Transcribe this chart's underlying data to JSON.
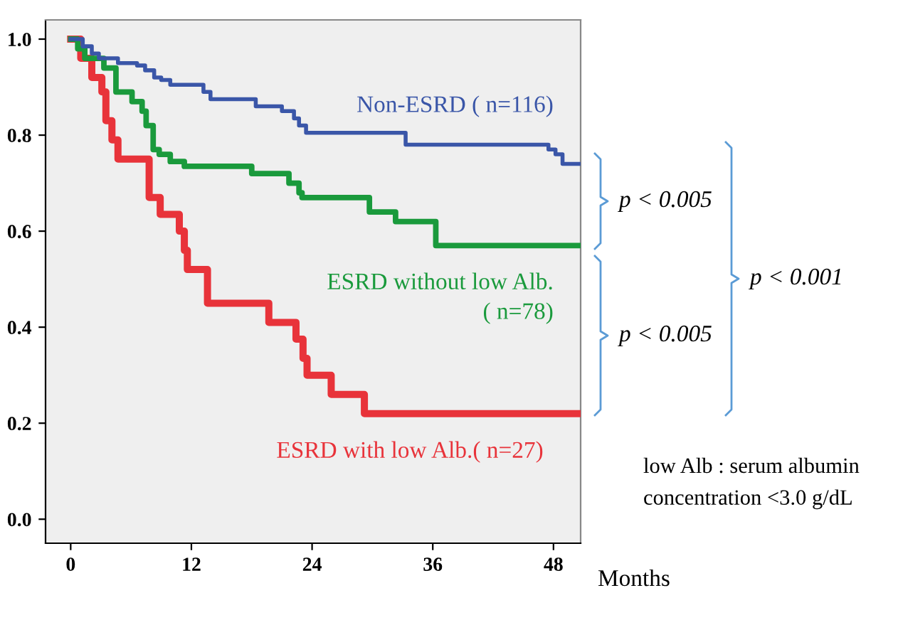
{
  "chart_data": {
    "type": "step",
    "xlabel": "Months",
    "xlim": [
      -2.5,
      50.7
    ],
    "ylim": [
      -0.05,
      1.04
    ],
    "xticks": [
      0,
      12,
      24,
      36,
      48
    ],
    "yticks": [
      {
        "value": 0,
        "label": "0.0"
      },
      {
        "value": 0.2,
        "label": "0.2"
      },
      {
        "value": 0.4,
        "label": "0.4"
      },
      {
        "value": 0.6,
        "label": "0.6"
      },
      {
        "value": 0.8,
        "label": "0.8"
      },
      {
        "value": 1,
        "label": "1.0"
      }
    ],
    "grid": false,
    "legend": false,
    "series": [
      {
        "name": "Non-ESRD ( n=116)",
        "color": "#3a56a8",
        "x": [
          0,
          1.2,
          2.1,
          2.8,
          4.7,
          6.6,
          7.4,
          8.3,
          9,
          9.9,
          13.2,
          13.9,
          18.4,
          21,
          22.2,
          22.7,
          23.4,
          33.3,
          47.5,
          48.2,
          48.9,
          50.5
        ],
        "values": [
          1.0,
          0.985,
          0.97,
          0.96,
          0.95,
          0.945,
          0.935,
          0.92,
          0.915,
          0.905,
          0.89,
          0.875,
          0.86,
          0.85,
          0.835,
          0.82,
          0.805,
          0.78,
          0.77,
          0.76,
          0.74,
          0.74
        ]
      },
      {
        "name": "ESRD without low Alb.\n( n=78)",
        "color": "#1a9a3c",
        "x": [
          0,
          0.7,
          1.4,
          3.3,
          4.5,
          6.1,
          7.1,
          7.5,
          8.2,
          8.8,
          9.9,
          11.3,
          18,
          21.7,
          22.7,
          23,
          29.7,
          32.3,
          36.3,
          50.5
        ],
        "values": [
          1.0,
          0.98,
          0.96,
          0.94,
          0.89,
          0.87,
          0.85,
          0.82,
          0.77,
          0.76,
          0.745,
          0.735,
          0.72,
          0.7,
          0.68,
          0.67,
          0.64,
          0.62,
          0.57,
          0.57
        ]
      },
      {
        "name": "ESRD with low Alb.( n=27)",
        "color": "#e8333a",
        "x": [
          0,
          1,
          2.1,
          3.1,
          3.5,
          4.1,
          4.7,
          7.8,
          8.9,
          10.8,
          11.3,
          11.6,
          13.6,
          19.7,
          22.4,
          23.1,
          23.5,
          25.9,
          29.2,
          50.5
        ],
        "values": [
          1.0,
          0.96,
          0.92,
          0.89,
          0.83,
          0.79,
          0.75,
          0.67,
          0.635,
          0.6,
          0.56,
          0.52,
          0.45,
          0.41,
          0.375,
          0.335,
          0.3,
          0.26,
          0.22,
          0.22
        ]
      }
    ],
    "annotations": [
      "p < 0.005",
      "p < 0.005",
      "p < 0.001",
      "low Alb : serum albumin\nconcentration <3.0 g/dL"
    ]
  }
}
